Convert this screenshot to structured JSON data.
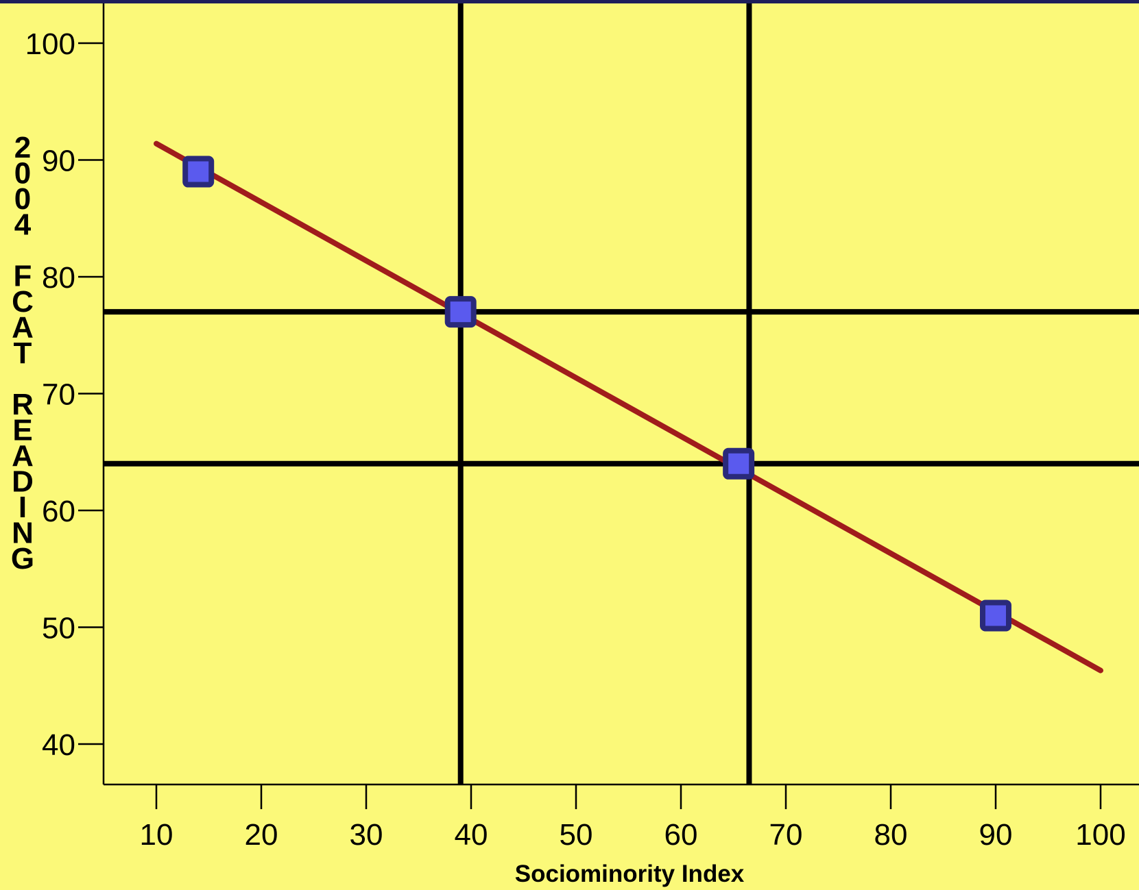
{
  "chart_data": {
    "type": "scatter",
    "title": "",
    "xlabel": "Sociominority Index",
    "ylabel": "2004 FCAT READING",
    "xlim": [
      5,
      103
    ],
    "ylim": [
      36.5,
      103.5
    ],
    "x_ticks": [
      10,
      20,
      30,
      40,
      50,
      60,
      70,
      80,
      90,
      100
    ],
    "y_ticks": [
      40,
      50,
      60,
      70,
      80,
      90,
      100
    ],
    "grid": false,
    "legend": "none",
    "series": [
      {
        "type": "scatter",
        "points": [
          {
            "x": 14,
            "y": 89
          },
          {
            "x": 39,
            "y": 77
          },
          {
            "x": 65.5,
            "y": 64
          },
          {
            "x": 90,
            "y": 51
          }
        ],
        "color": "#5A5AEE",
        "edge_color": "#2A2A7A"
      },
      {
        "type": "line",
        "x": [
          10,
          100
        ],
        "y": [
          91.4,
          46.3
        ],
        "color": "#A01C1C"
      }
    ],
    "reference_lines": {
      "vertical": [
        39,
        66.5
      ],
      "horizontal": [
        77,
        64
      ]
    }
  },
  "colors": {
    "background": "#FBF979",
    "top_border": "#1E1E5A",
    "marker_fill": "#5A5AEE",
    "marker_edge": "#2A2A7A",
    "trend_line": "#A01C1C",
    "reference_lines": "#000000"
  }
}
